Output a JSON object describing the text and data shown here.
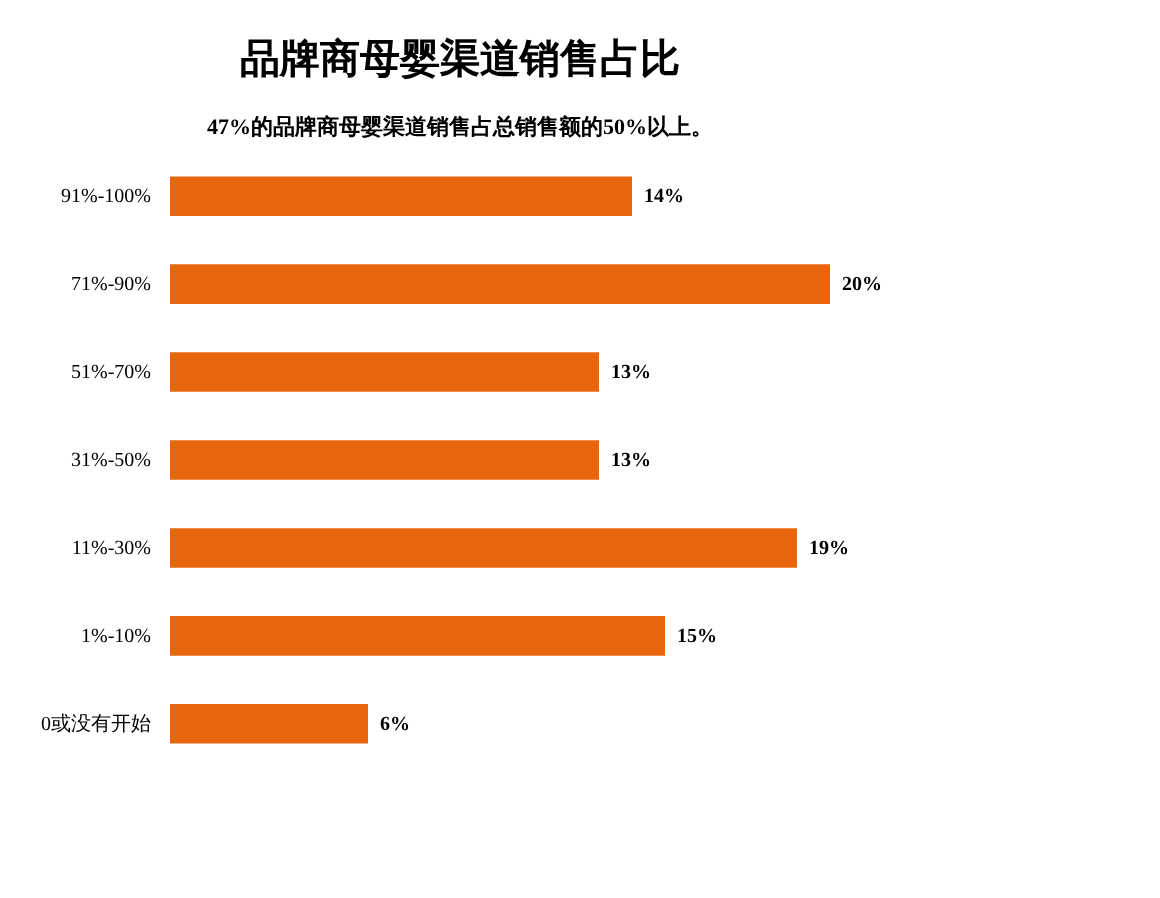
{
  "chart_data": {
    "type": "bar",
    "orientation": "horizontal",
    "title": "品牌商母婴渠道销售占比",
    "subtitle": "47%的品牌商母婴渠道销售占总销售额的50%以上。",
    "categories": [
      "91%-100%",
      "71%-90%",
      "51%-70%",
      "31%-50%",
      "11%-30%",
      "1%-10%",
      "0或没有开始"
    ],
    "series": [
      {
        "color": "#e8650e",
        "values": [
          14,
          20,
          13,
          13,
          19,
          15,
          6
        ],
        "value_labels": [
          "14%",
          "20%",
          "13%",
          "13%",
          "19%",
          "15%",
          "6%"
        ]
      }
    ],
    "data_labels": true
  }
}
